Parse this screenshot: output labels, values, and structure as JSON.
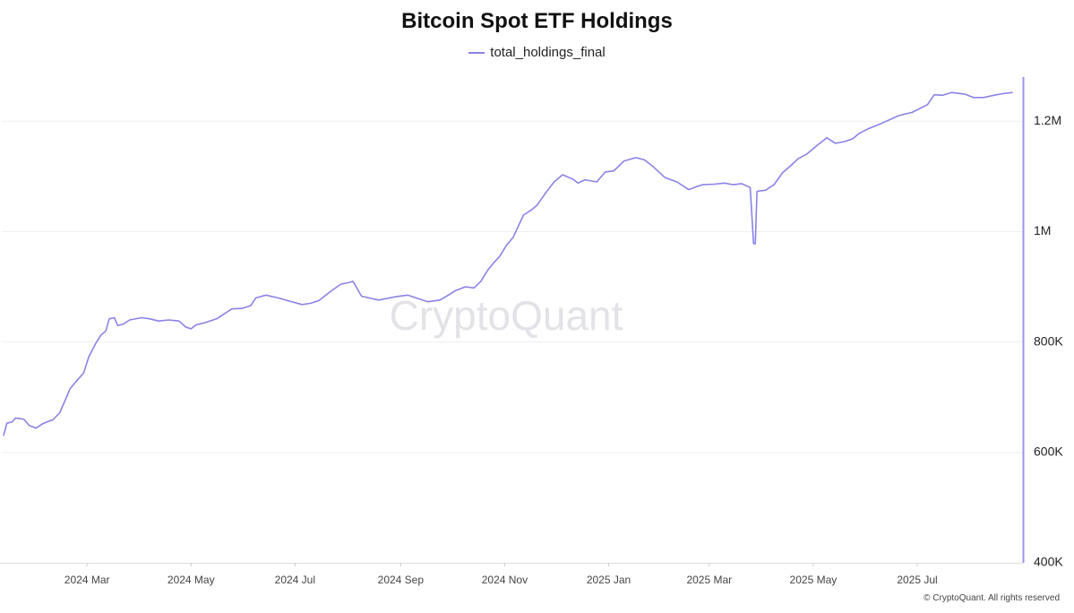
{
  "title": "Bitcoin Spot ETF Holdings",
  "legend": {
    "label": "total_holdings_final"
  },
  "watermark": "CryptoQuant",
  "copyright": "© CryptoQuant. All rights reserved",
  "colors": {
    "line": "#8b82e6",
    "axis": "#9a93ea",
    "grid": "#efeff3",
    "watermark": "#e3e3e7"
  },
  "chart_data": {
    "type": "line",
    "title": "Bitcoin Spot ETF Holdings",
    "xlabel": "",
    "ylabel": "",
    "x_tick_labels": [
      "2024 Mar",
      "2024 May",
      "2024 Jul",
      "2024 Sep",
      "2024 Nov",
      "2025 Jan",
      "2025 Mar",
      "2025 May",
      "2025 Jul"
    ],
    "x_tick_dates": [
      "2024-03-01",
      "2024-05-01",
      "2024-07-01",
      "2024-09-01",
      "2024-11-01",
      "2025-01-01",
      "2025-03-01",
      "2025-05-01",
      "2025-07-01"
    ],
    "xlim": [
      "2024-01-11",
      "2025-09-01"
    ],
    "y_ticks": [
      400000,
      600000,
      800000,
      1000000,
      1200000
    ],
    "y_tick_labels": [
      "400K",
      "600K",
      "800K",
      "1M",
      "1.2M"
    ],
    "ylim": [
      400000,
      1280000
    ],
    "y_axis_position": "right",
    "grid": true,
    "legend_position": "top-center",
    "series": [
      {
        "name": "total_holdings_final",
        "x": [
          "2024-01-12",
          "2024-01-14",
          "2024-01-17",
          "2024-01-19",
          "2024-01-22",
          "2024-01-24",
          "2024-01-27",
          "2024-01-31",
          "2024-02-04",
          "2024-02-08",
          "2024-02-10",
          "2024-02-14",
          "2024-02-17",
          "2024-02-20",
          "2024-02-24",
          "2024-02-28",
          "2024-03-02",
          "2024-03-06",
          "2024-03-09",
          "2024-03-12",
          "2024-03-14",
          "2024-03-17",
          "2024-03-19",
          "2024-03-22",
          "2024-03-26",
          "2024-04-02",
          "2024-04-07",
          "2024-04-12",
          "2024-04-18",
          "2024-04-24",
          "2024-04-28",
          "2024-05-01",
          "2024-05-04",
          "2024-05-09",
          "2024-05-16",
          "2024-05-21",
          "2024-05-25",
          "2024-05-31",
          "2024-06-05",
          "2024-06-08",
          "2024-06-14",
          "2024-06-21",
          "2024-06-28",
          "2024-07-05",
          "2024-07-10",
          "2024-07-15",
          "2024-07-22",
          "2024-07-28",
          "2024-08-02",
          "2024-08-04",
          "2024-08-09",
          "2024-08-19",
          "2024-08-29",
          "2024-09-05",
          "2024-09-12",
          "2024-09-17",
          "2024-09-24",
          "2024-09-29",
          "2024-10-03",
          "2024-10-09",
          "2024-10-14",
          "2024-10-18",
          "2024-10-22",
          "2024-10-26",
          "2024-10-29",
          "2024-11-02",
          "2024-11-06",
          "2024-11-09",
          "2024-11-12",
          "2024-11-17",
          "2024-11-20",
          "2024-11-25",
          "2024-11-30",
          "2024-12-05",
          "2024-12-11",
          "2024-12-14",
          "2024-12-18",
          "2024-12-25",
          "2024-12-30",
          "2025-01-04",
          "2025-01-10",
          "2025-01-17",
          "2025-01-22",
          "2025-01-27",
          "2025-02-03",
          "2025-02-10",
          "2025-02-17",
          "2025-02-21",
          "2025-02-25",
          "2025-03-04",
          "2025-03-10",
          "2025-03-15",
          "2025-03-20",
          "2025-03-25",
          "2025-03-27",
          "2025-03-28",
          "2025-03-29",
          "2025-03-31",
          "2025-04-03",
          "2025-04-08",
          "2025-04-13",
          "2025-04-18",
          "2025-04-22",
          "2025-04-27",
          "2025-05-04",
          "2025-05-09",
          "2025-05-14",
          "2025-05-19",
          "2025-05-24",
          "2025-05-28",
          "2025-06-02",
          "2025-06-10",
          "2025-06-20",
          "2025-06-28",
          "2025-07-07",
          "2025-07-11",
          "2025-07-16",
          "2025-07-21",
          "2025-07-29",
          "2025-08-03",
          "2025-08-09",
          "2025-08-15",
          "2025-08-20",
          "2025-08-26"
        ],
        "values": [
          630000,
          653000,
          655000,
          662000,
          661000,
          660000,
          649000,
          644000,
          652000,
          657000,
          659000,
          672000,
          693000,
          715000,
          730000,
          744000,
          773000,
          797000,
          812000,
          820000,
          842000,
          844000,
          830000,
          832000,
          840000,
          844000,
          842000,
          838000,
          840000,
          838000,
          827000,
          824000,
          831000,
          835000,
          842000,
          852000,
          860000,
          861000,
          866000,
          880000,
          885000,
          880000,
          874000,
          868000,
          870000,
          875000,
          892000,
          905000,
          908000,
          910000,
          883000,
          876000,
          882000,
          885000,
          878000,
          873000,
          876000,
          885000,
          893000,
          900000,
          898000,
          910000,
          930000,
          945000,
          955000,
          975000,
          990000,
          1010000,
          1030000,
          1040000,
          1048000,
          1070000,
          1090000,
          1103000,
          1095000,
          1088000,
          1094000,
          1090000,
          1108000,
          1110000,
          1128000,
          1134000,
          1130000,
          1118000,
          1098000,
          1090000,
          1076000,
          1081000,
          1085000,
          1086000,
          1088000,
          1085000,
          1087000,
          1080000,
          978000,
          978000,
          1073000,
          1074000,
          1075000,
          1085000,
          1107000,
          1120000,
          1132000,
          1140000,
          1158000,
          1170000,
          1160000,
          1163000,
          1168000,
          1178000,
          1186000,
          1196000,
          1210000,
          1216000,
          1230000,
          1248000,
          1247000,
          1252000,
          1249000,
          1243000,
          1243000,
          1247000,
          1250000,
          1252000
        ]
      }
    ]
  }
}
